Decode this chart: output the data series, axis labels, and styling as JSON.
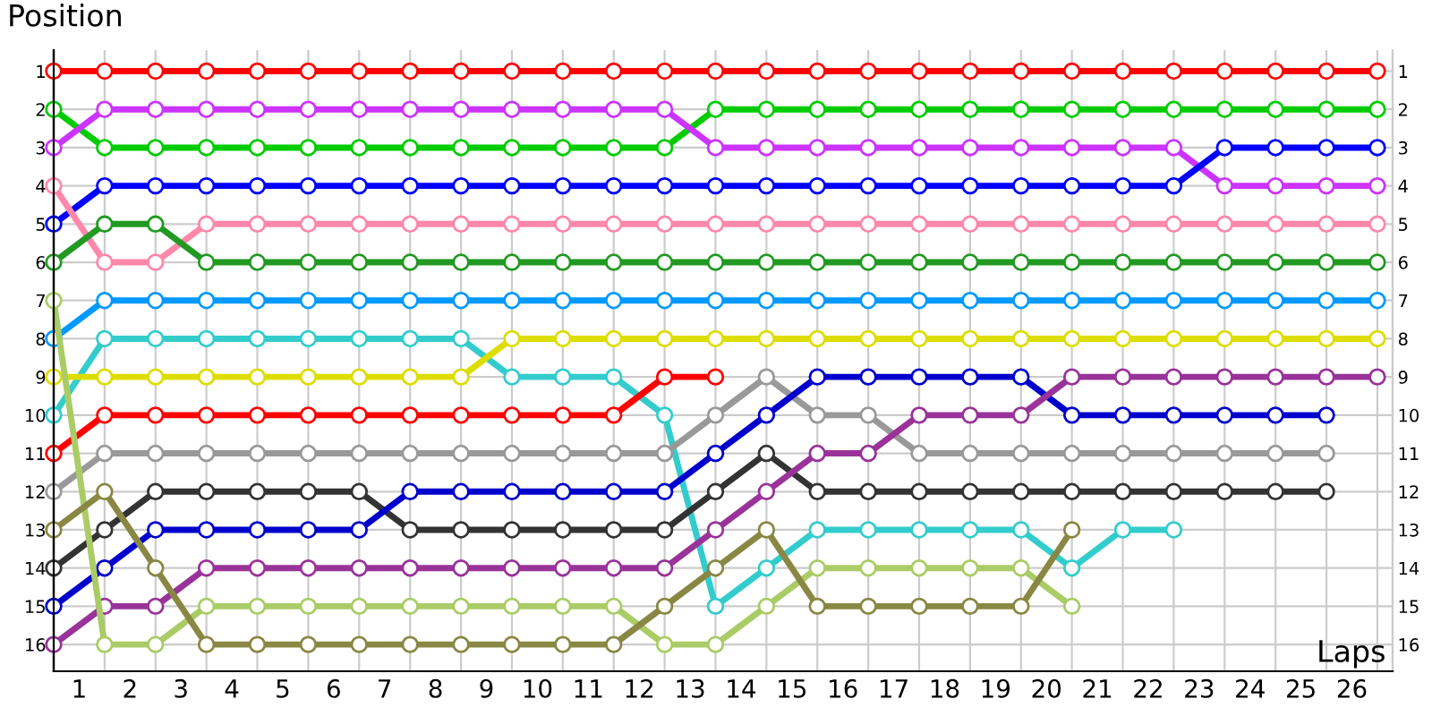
{
  "chart_data": {
    "type": "line",
    "xlabel": "Laps",
    "ylabel": "Position",
    "x": [
      0,
      1,
      2,
      3,
      4,
      5,
      6,
      7,
      8,
      9,
      10,
      11,
      12,
      13,
      14,
      15,
      16,
      17,
      18,
      19,
      20,
      21,
      22,
      23,
      24,
      25,
      26
    ],
    "xlim": [
      0,
      26.3
    ],
    "xticks": [
      {
        "value": 0.5,
        "label": "1"
      },
      {
        "value": 1.5,
        "label": "2"
      },
      {
        "value": 2.5,
        "label": "3"
      },
      {
        "value": 3.5,
        "label": "4"
      },
      {
        "value": 4.5,
        "label": "5"
      },
      {
        "value": 5.5,
        "label": "6"
      },
      {
        "value": 6.5,
        "label": "7"
      },
      {
        "value": 7.5,
        "label": "8"
      },
      {
        "value": 8.5,
        "label": "9"
      },
      {
        "value": 9.5,
        "label": "10"
      },
      {
        "value": 10.5,
        "label": "11"
      },
      {
        "value": 11.5,
        "label": "12"
      },
      {
        "value": 12.5,
        "label": "13"
      },
      {
        "value": 13.5,
        "label": "14"
      },
      {
        "value": 14.5,
        "label": "15"
      },
      {
        "value": 15.5,
        "label": "16"
      },
      {
        "value": 16.5,
        "label": "17"
      },
      {
        "value": 17.5,
        "label": "18"
      },
      {
        "value": 18.5,
        "label": "19"
      },
      {
        "value": 19.5,
        "label": "20"
      },
      {
        "value": 20.5,
        "label": "21"
      },
      {
        "value": 21.5,
        "label": "22"
      },
      {
        "value": 22.5,
        "label": "23"
      },
      {
        "value": 23.5,
        "label": "24"
      },
      {
        "value": 24.5,
        "label": "25"
      },
      {
        "value": 25.5,
        "label": "26"
      }
    ],
    "ylim": [
      16.7,
      0.45
    ],
    "yticks": [
      1,
      2,
      3,
      4,
      5,
      6,
      7,
      8,
      9,
      10,
      11,
      12,
      13,
      14,
      15,
      16
    ],
    "y2lim": [
      16.7,
      0.45
    ],
    "y2ticks": [
      1,
      2,
      3,
      4,
      5,
      6,
      7,
      8,
      9,
      10,
      11,
      12,
      13,
      14,
      15,
      16
    ],
    "grid": true,
    "marker": "circle",
    "line_style": "solid",
    "series": [
      {
        "color": "#ff0000",
        "values": [
          1,
          1,
          1,
          1,
          1,
          1,
          1,
          1,
          1,
          1,
          1,
          1,
          1,
          1,
          1,
          1,
          1,
          1,
          1,
          1,
          1,
          1,
          1,
          1,
          1,
          1,
          1
        ]
      },
      {
        "color": "#00cc00",
        "values": [
          2,
          3,
          3,
          3,
          3,
          3,
          3,
          3,
          3,
          3,
          3,
          3,
          3,
          2,
          2,
          2,
          2,
          2,
          2,
          2,
          2,
          2,
          2,
          2,
          2,
          2,
          2
        ]
      },
      {
        "color": "#cc33ff",
        "values": [
          3,
          2,
          2,
          2,
          2,
          2,
          2,
          2,
          2,
          2,
          2,
          2,
          2,
          3,
          3,
          3,
          3,
          3,
          3,
          3,
          3,
          3,
          3,
          4,
          4,
          4,
          4
        ]
      },
      {
        "color": "#0000ff",
        "values": [
          5,
          4,
          4,
          4,
          4,
          4,
          4,
          4,
          4,
          4,
          4,
          4,
          4,
          4,
          4,
          4,
          4,
          4,
          4,
          4,
          4,
          4,
          4,
          3,
          3,
          3,
          3
        ]
      },
      {
        "color": "#ff88aa",
        "values": [
          4,
          6,
          6,
          5,
          5,
          5,
          5,
          5,
          5,
          5,
          5,
          5,
          5,
          5,
          5,
          5,
          5,
          5,
          5,
          5,
          5,
          5,
          5,
          5,
          5,
          5,
          5
        ]
      },
      {
        "color": "#229922",
        "values": [
          6,
          5,
          5,
          6,
          6,
          6,
          6,
          6,
          6,
          6,
          6,
          6,
          6,
          6,
          6,
          6,
          6,
          6,
          6,
          6,
          6,
          6,
          6,
          6,
          6,
          6,
          6
        ]
      },
      {
        "color": "#0099ff",
        "values": [
          8,
          7,
          7,
          7,
          7,
          7,
          7,
          7,
          7,
          7,
          7,
          7,
          7,
          7,
          7,
          7,
          7,
          7,
          7,
          7,
          7,
          7,
          7,
          7,
          7,
          7,
          7
        ]
      },
      {
        "color": "#33cccc",
        "values": [
          10,
          8,
          8,
          8,
          8,
          8,
          8,
          8,
          8,
          9,
          9,
          9,
          10,
          15,
          14,
          13,
          13,
          13,
          13,
          13,
          14,
          13,
          13,
          null,
          null,
          null,
          null
        ]
      },
      {
        "color": "#dddd00",
        "values": [
          9,
          9,
          9,
          9,
          9,
          9,
          9,
          9,
          9,
          8,
          8,
          8,
          8,
          8,
          8,
          8,
          8,
          8,
          8,
          8,
          8,
          8,
          8,
          8,
          8,
          8,
          8
        ]
      },
      {
        "color": "#ff0000",
        "values": [
          11,
          10,
          10,
          10,
          10,
          10,
          10,
          10,
          10,
          10,
          10,
          10,
          9,
          9,
          null,
          null,
          null,
          null,
          null,
          null,
          null,
          null,
          null,
          null,
          null,
          null,
          null
        ]
      },
      {
        "color": "#999999",
        "values": [
          12,
          11,
          11,
          11,
          11,
          11,
          11,
          11,
          11,
          11,
          11,
          11,
          11,
          10,
          9,
          10,
          10,
          11,
          11,
          11,
          11,
          11,
          11,
          11,
          11,
          11,
          null
        ]
      },
      {
        "color": "#333333",
        "values": [
          14,
          13,
          12,
          12,
          12,
          12,
          12,
          13,
          13,
          13,
          13,
          13,
          13,
          12,
          11,
          12,
          12,
          12,
          12,
          12,
          12,
          12,
          12,
          12,
          12,
          12,
          null
        ]
      },
      {
        "color": "#0000cc",
        "values": [
          15,
          14,
          13,
          13,
          13,
          13,
          13,
          12,
          12,
          12,
          12,
          12,
          12,
          11,
          10,
          9,
          9,
          9,
          9,
          9,
          10,
          10,
          10,
          10,
          10,
          10,
          null
        ]
      },
      {
        "color": "#993399",
        "values": [
          16,
          15,
          15,
          14,
          14,
          14,
          14,
          14,
          14,
          14,
          14,
          14,
          14,
          13,
          12,
          11,
          11,
          10,
          10,
          10,
          9,
          9,
          9,
          9,
          9,
          9,
          9
        ]
      },
      {
        "color": "#aacc66",
        "values": [
          7,
          16,
          16,
          15,
          15,
          15,
          15,
          15,
          15,
          15,
          15,
          15,
          16,
          16,
          15,
          14,
          14,
          14,
          14,
          14,
          15,
          null,
          null,
          null,
          null,
          null,
          null
        ]
      },
      {
        "color": "#888844",
        "values": [
          13,
          12,
          14,
          16,
          16,
          16,
          16,
          16,
          16,
          16,
          16,
          16,
          15,
          14,
          13,
          15,
          15,
          15,
          15,
          15,
          13,
          null,
          null,
          null,
          null,
          null,
          null
        ]
      }
    ]
  }
}
